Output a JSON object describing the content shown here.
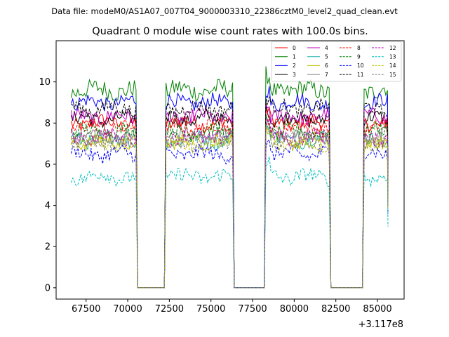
{
  "chart_data": {
    "type": "line",
    "suptitle": "Data file: modeM0/AS1A07_007T04_9000003310_22386cztM0_level2_quad_clean.evt",
    "title": "Quadrant 0 module wise count rates with 100.0s bins.",
    "xlabel": "",
    "ylabel": "",
    "x_offset_label": "+3.117e8",
    "xlim": [
      65700,
      86600
    ],
    "ylim": [
      -0.55,
      12.0
    ],
    "x_ticks": [
      67500,
      70000,
      72500,
      75000,
      77500,
      80000,
      82500,
      85000
    ],
    "x_tick_labels": [
      "67500",
      "70000",
      "72500",
      "75000",
      "77500",
      "80000",
      "82500",
      "85000"
    ],
    "y_ticks": [
      0,
      2,
      4,
      6,
      8,
      10
    ],
    "y_tick_labels": [
      "0",
      "2",
      "4",
      "6",
      "8",
      "10"
    ],
    "bin_size": 100,
    "segments": [
      {
        "x_start": 66600,
        "x_end": 70500
      },
      {
        "x_start": 72300,
        "x_end": 76300
      },
      {
        "x_start": 78300,
        "x_end": 82100
      },
      {
        "x_start": 84200,
        "x_end": 85600
      }
    ],
    "gaps_zero": [
      {
        "x_start": 70600,
        "x_end": 72200
      },
      {
        "x_start": 76400,
        "x_end": 78200
      },
      {
        "x_start": 82200,
        "x_end": 84100
      }
    ],
    "series": [
      {
        "name": "0",
        "mean": 8.0,
        "color": "#ff0000",
        "dash": "solid"
      },
      {
        "name": "1",
        "mean": 9.6,
        "color": "#008000",
        "dash": "solid"
      },
      {
        "name": "2",
        "mean": 9.0,
        "color": "#0000ff",
        "dash": "solid"
      },
      {
        "name": "3",
        "mean": 8.2,
        "color": "#000000",
        "dash": "solid"
      },
      {
        "name": "4",
        "mean": 8.3,
        "color": "#bf00bf",
        "dash": "solid"
      },
      {
        "name": "5",
        "mean": 7.2,
        "color": "#20b2aa",
        "dash": "solid"
      },
      {
        "name": "6",
        "mean": 7.1,
        "color": "#bfbf00",
        "dash": "solid"
      },
      {
        "name": "7",
        "mean": 7.4,
        "color": "#808080",
        "dash": "solid"
      },
      {
        "name": "8",
        "mean": 7.8,
        "color": "#ff0000",
        "dash": "dashed"
      },
      {
        "name": "9",
        "mean": 7.6,
        "color": "#008000",
        "dash": "dashed"
      },
      {
        "name": "10",
        "mean": 6.5,
        "color": "#0000ff",
        "dash": "dashed"
      },
      {
        "name": "11",
        "mean": 8.7,
        "color": "#000000",
        "dash": "dashed"
      },
      {
        "name": "12",
        "mean": 7.3,
        "color": "#bf00bf",
        "dash": "dashed"
      },
      {
        "name": "13",
        "mean": 5.4,
        "color": "#00bfbf",
        "dash": "dashed"
      },
      {
        "name": "14",
        "mean": 7.0,
        "color": "#bfbf00",
        "dash": "dashed"
      },
      {
        "name": "15",
        "mean": 7.1,
        "color": "#808080",
        "dash": "dashed"
      }
    ],
    "noise_amplitude": 0.35,
    "legend_position": "top-right",
    "legend_columns": 4,
    "grid": false
  }
}
